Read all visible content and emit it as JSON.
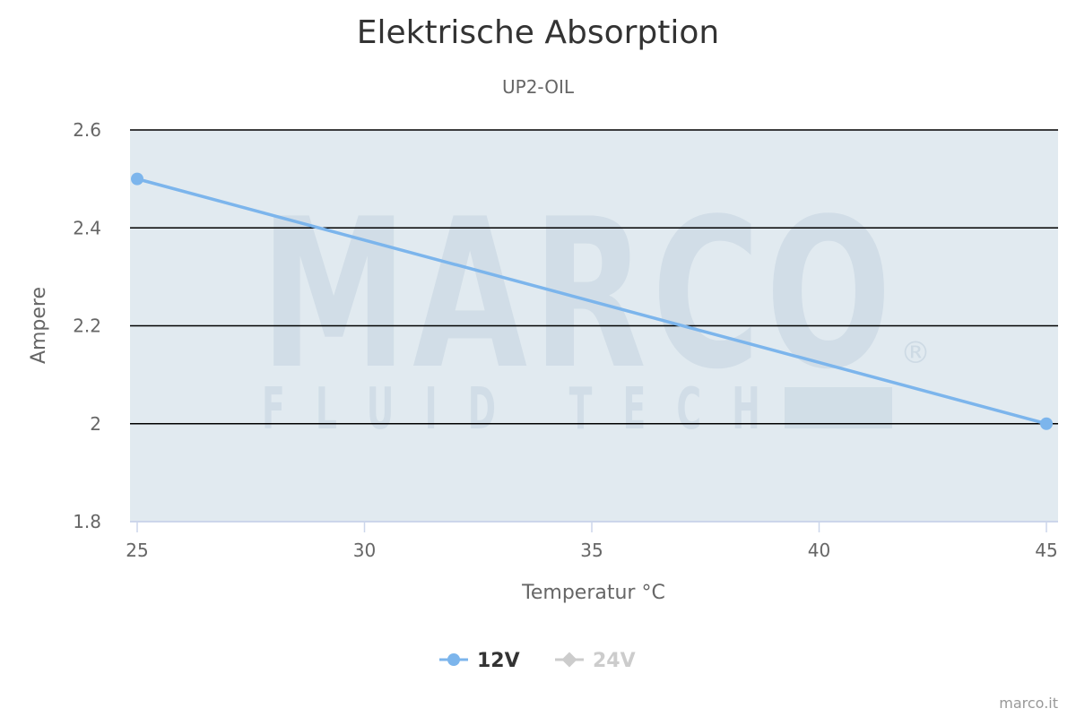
{
  "chart_data": {
    "type": "line",
    "title": "Elektrische Absorption",
    "subtitle": "UP2-OIL",
    "xlabel": "Temperatur °C",
    "ylabel": "Ampere",
    "xlim": [
      25,
      45
    ],
    "ylim": [
      1.8,
      2.6
    ],
    "x_ticks": [
      "25",
      "30",
      "35",
      "40",
      "45"
    ],
    "y_ticks": [
      "1.8",
      "2",
      "2.2",
      "2.4",
      "2.6"
    ],
    "grid": true,
    "legend_position": "bottom-center",
    "series": [
      {
        "name": "12V",
        "color": "#7cb5ec",
        "visible": true,
        "x": [
          25,
          45
        ],
        "values": [
          2.5,
          2.0
        ]
      },
      {
        "name": "24V",
        "color": "#cccccc",
        "visible": false,
        "x": [],
        "values": []
      }
    ]
  },
  "watermark": {
    "brand": "MARCO",
    "tagline": "FLUID TECH",
    "mark": "®"
  },
  "credit": "marco.it",
  "colors": {
    "plot_background": "#e1eaf0",
    "grid": "#000000",
    "axis_line": "#ccd6eb",
    "hidden_series": "#cccccc"
  }
}
